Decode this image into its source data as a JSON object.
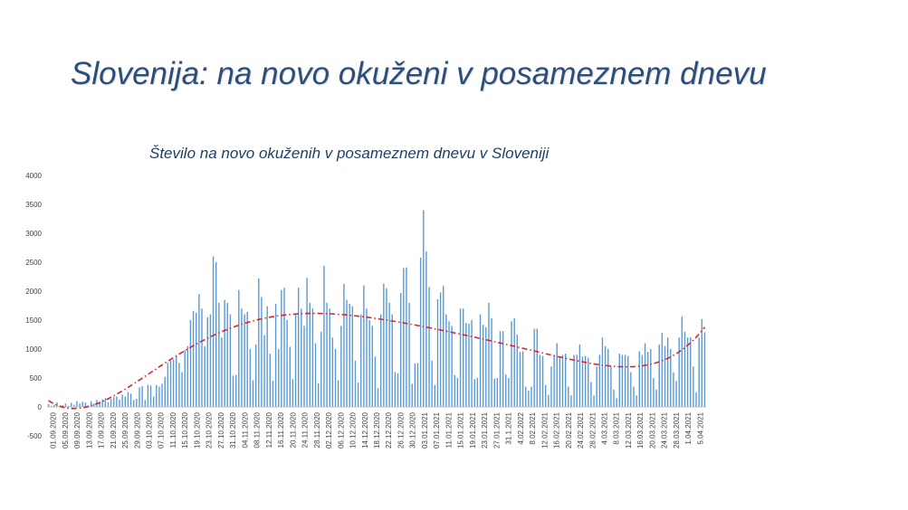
{
  "slide": {
    "title": "Slovenija: na novo okuženi v posameznem dnevu"
  },
  "chart_data": {
    "type": "bar",
    "title": "Število na novo okuženih v posameznem dnevu v Sloveniji",
    "xlabel": "",
    "ylabel": "",
    "ylim": [
      -500,
      4000
    ],
    "yticks": [
      -500,
      0,
      500,
      1000,
      1500,
      2000,
      2500,
      3000,
      3500,
      4000
    ],
    "grid": false,
    "bar_color": "#5b9bd5",
    "trend_color": "#d9262b",
    "x_tick_labels": [
      "01.09.2020",
      "05.09.2020",
      "09.09.2020",
      "13.09.2020",
      "17.09.2020",
      "21.09.2020",
      "25.09.2020",
      "29.09.2020",
      "03.10.2020",
      "07.10.2020",
      "11.10.2020",
      "15.10.2020",
      "19.10.2020",
      "23.10.2020",
      "27.10.2020",
      "31.10.2020",
      "04.11.2020",
      "08.11.2020",
      "12.11.2020",
      "16.11.2020",
      "20.11.2020",
      "24.11.2020",
      "28.11.2020",
      "02.12.2020",
      "06.12.2020",
      "10.12.2020",
      "14.12.2020",
      "18.12.2020",
      "22.12.2020",
      "26.12.2020",
      "30.12.2020",
      "03.01.2021",
      "07.01.2021",
      "11.01.2021",
      "15.01.2021",
      "19.01.2021",
      "23.01.2021",
      "27.01.2021",
      "31.1.2021",
      "4.02.2022",
      "8.02.2021",
      "12.02.2021",
      "16.02.2021",
      "20.02.2021",
      "24.02.2021",
      "28.02.2021",
      "4.03.2021",
      "8.03.2021",
      "12.03.2021",
      "16.03.2021",
      "20.03.2021",
      "24.03.2021",
      "28.03.2021",
      "1.04.2021",
      "5.04.2021"
    ],
    "values": [
      50,
      20,
      40,
      80,
      10,
      30,
      60,
      20,
      70,
      40,
      100,
      60,
      90,
      80,
      30,
      100,
      60,
      120,
      90,
      130,
      150,
      80,
      140,
      170,
      180,
      130,
      210,
      180,
      260,
      230,
      120,
      140,
      340,
      360,
      120,
      380,
      370,
      180,
      380,
      350,
      400,
      520,
      760,
      800,
      820,
      880,
      760,
      600,
      980,
      1050,
      1500,
      1660,
      1630,
      1950,
      1700,
      1050,
      1550,
      1600,
      2600,
      2500,
      1800,
      1200,
      1850,
      1800,
      1600,
      540,
      550,
      2020,
      1700,
      1600,
      1640,
      1000,
      460,
      1080,
      2220,
      1900,
      1240,
      1740,
      920,
      450,
      1780,
      1000,
      2020,
      2060,
      1500,
      1040,
      480,
      1600,
      2060,
      1700,
      1400,
      2230,
      1800,
      1700,
      1100,
      410,
      1300,
      2440,
      1800,
      1700,
      1200,
      1000,
      460,
      1400,
      2130,
      1850,
      1780,
      1740,
      800,
      420,
      1600,
      2100,
      1700,
      1500,
      1400,
      870,
      320,
      1600,
      2130,
      2050,
      1800,
      1600,
      600,
      580,
      1970,
      2400,
      2410,
      1800,
      400,
      750,
      760,
      2580,
      3400,
      2690,
      2070,
      800,
      380,
      1860,
      1980,
      2090,
      1600,
      1480,
      1400,
      550,
      500,
      1700,
      1700,
      1450,
      1440,
      1500,
      480,
      500,
      1600,
      1420,
      1380,
      1800,
      1530,
      490,
      500,
      1310,
      1310,
      560,
      500,
      1480,
      1530,
      1250,
      950,
      960,
      350,
      280,
      350,
      1350,
      1350,
      900,
      880,
      380,
      210,
      700,
      900,
      1100,
      850,
      900,
      920,
      350,
      200,
      900,
      900,
      1080,
      870,
      880,
      850,
      430,
      200,
      700,
      900,
      1200,
      1050,
      1000,
      700,
      300,
      150,
      920,
      900,
      900,
      880,
      600,
      350,
      200,
      960,
      900,
      1100,
      950,
      1000,
      500,
      300,
      1080,
      1280,
      1050,
      1200,
      1000,
      600,
      450,
      1200,
      1560,
      1300,
      1200,
      1200,
      700,
      250,
      1200,
      1520,
      1290
    ]
  }
}
